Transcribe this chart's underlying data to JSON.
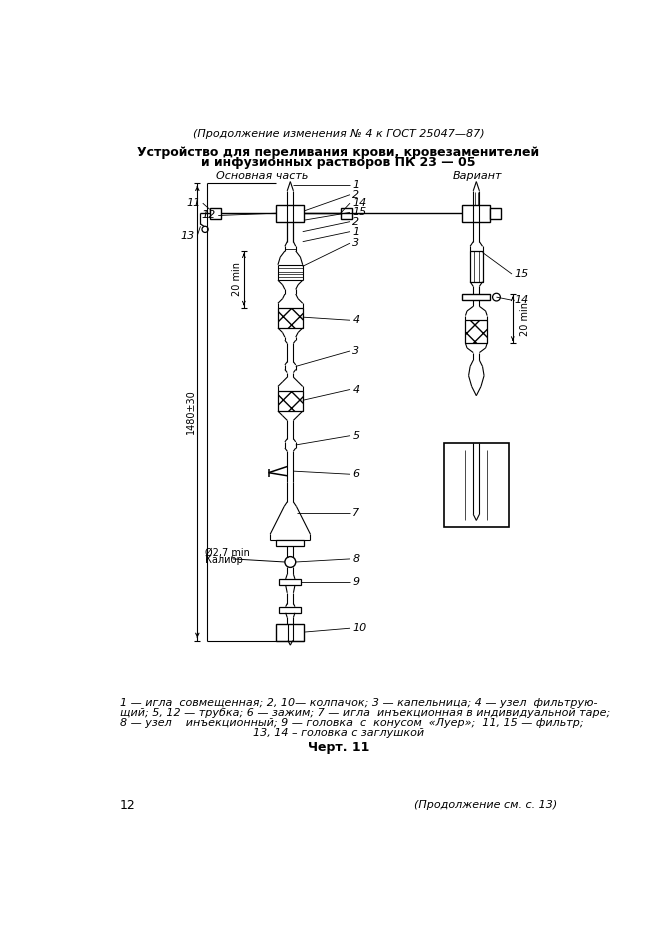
{
  "page_width": 6.61,
  "page_height": 9.36,
  "bg_color": "#ffffff",
  "title_italic": "(Продолжение изменения № 4 к ГОСТ 25047—87)",
  "title_bold_line1": "Устройство для переливания крови, кровезаменителей",
  "title_bold_line2": "и инфузионных растворов ПК 23 — 05",
  "label_main": "Основная часть",
  "label_variant": "Вариант",
  "caption_line1": "1 — игла  совмещенная; 2, 10— колпачок; 3 — капельница; 4 — узел  фильтрую-",
  "caption_line2": "щий; 5, 12 — трубка; 6 — зажим; 7 — игла  инъекционная в индивидуальной таре;",
  "caption_line3": "8 — узел    инъекционный; 9 — головка  с  конусом  «Луер»;  11, 15 — фильтр;",
  "caption_line4": "13, 14 – головка с заглушкой",
  "chart_label": "Черт. 11",
  "page_num": "12",
  "bottom_italic": "(Продолжение см. с. 13)",
  "dim_total": "1480±30",
  "dim_20min_main": "20 min",
  "dim_20min_var": "20 min",
  "dim_phi": "Ø2,7 min",
  "dim_calibr": "Калибр"
}
